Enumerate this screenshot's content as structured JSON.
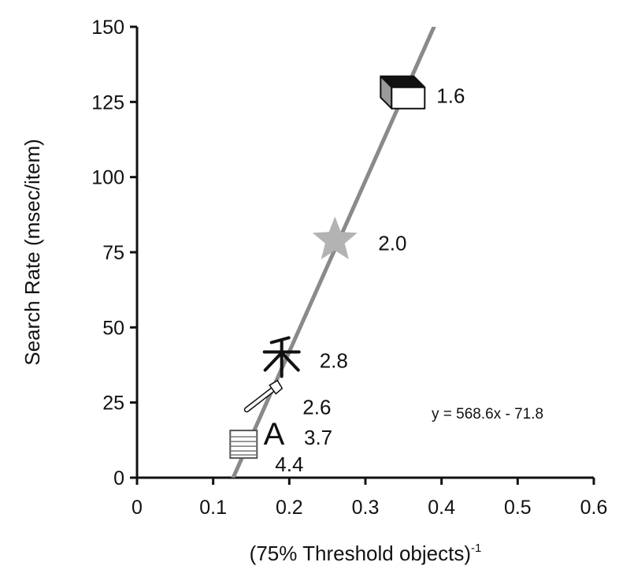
{
  "chart_data": {
    "type": "scatter",
    "xlabel": "(75% Threshold objects)",
    "xlabel_superscript": "-1",
    "ylabel": "Search Rate (msec/item)",
    "xlim": [
      0,
      0.6
    ],
    "ylim": [
      0,
      150
    ],
    "x_ticks": [
      0,
      0.1,
      0.2,
      0.3,
      0.4,
      0.5,
      0.6
    ],
    "x_tick_labels": [
      "0",
      "0.1",
      "0.2",
      "0.3",
      "0.4",
      "0.5",
      "0.6"
    ],
    "y_ticks": [
      0,
      25,
      50,
      75,
      100,
      125,
      150
    ],
    "y_tick_labels": [
      "0",
      "25",
      "50",
      "75",
      "100",
      "125",
      "150"
    ],
    "grid": false,
    "points": [
      {
        "x": 0.35,
        "y": 127,
        "label": "1.6",
        "icon": "cube-icon"
      },
      {
        "x": 0.26,
        "y": 79,
        "label": "2.0",
        "icon": "star-icon"
      },
      {
        "x": 0.19,
        "y": 40,
        "label": "2.8",
        "icon": "chinese-character-icon"
      },
      {
        "x": 0.17,
        "y": 25,
        "label": "2.6",
        "icon": "axe-icon"
      },
      {
        "x": 0.18,
        "y": 15,
        "label": "3.7",
        "icon": "letter-a-icon"
      },
      {
        "x": 0.14,
        "y": 11,
        "label": "4.4",
        "icon": "striped-box-icon"
      }
    ],
    "fit_line": {
      "slope": 568.6,
      "intercept": -71.8,
      "x_range": [
        0.126,
        0.39
      ]
    },
    "fit_equation": "y = 568.6x - 71.8",
    "colors": {
      "fit_line": "#8a8a8a",
      "axes": "#111111",
      "star": "#b3b3b3"
    }
  }
}
